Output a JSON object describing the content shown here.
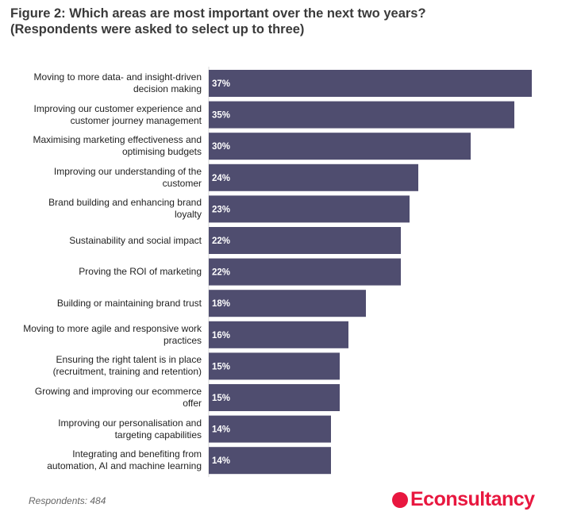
{
  "chart_data": {
    "type": "bar",
    "orientation": "horizontal",
    "title": "Figure 2: Which areas are most important over the next two years?",
    "subtitle": "(Respondents were asked to select up to three)",
    "categories": [
      "Moving to more data- and insight-driven decision making",
      "Improving our customer experience and customer journey management",
      "Maximising marketing effectiveness and optimising budgets",
      "Improving our understanding of the customer",
      "Brand building and enhancing brand loyalty",
      "Sustainability and social impact",
      "Proving the ROI of marketing",
      "Building or maintaining brand trust",
      "Moving to more agile and responsive work practices",
      "Ensuring the right talent is in place (recruitment, training and retention)",
      "Growing and improving our ecommerce offer",
      "Improving our personalisation and targeting capabilities",
      "Integrating and benefiting from automation, AI and machine learning"
    ],
    "values": [
      37,
      35,
      30,
      24,
      23,
      22,
      22,
      18,
      16,
      15,
      15,
      14,
      14
    ],
    "value_labels": [
      "37%",
      "35%",
      "30%",
      "24%",
      "23%",
      "22%",
      "22%",
      "18%",
      "16%",
      "15%",
      "15%",
      "14%",
      "14%"
    ],
    "color": "#4f4d6f",
    "footnote": "Respondents: 484",
    "brand": "Econsultancy"
  }
}
